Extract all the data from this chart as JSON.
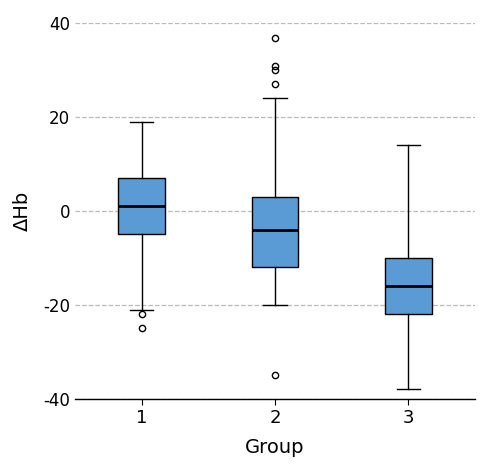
{
  "groups": [
    "1",
    "2",
    "3"
  ],
  "box_stats": [
    {
      "med": 1,
      "q1": -5,
      "q3": 7,
      "whislo": -21,
      "whishi": 19,
      "fliers": [
        -22,
        -25
      ]
    },
    {
      "med": -4,
      "q1": -12,
      "q3": 3,
      "whislo": -20,
      "whishi": 24,
      "fliers": [
        27,
        30,
        31,
        37,
        -35
      ]
    },
    {
      "med": -16,
      "q1": -22,
      "q3": -10,
      "whislo": -38,
      "whishi": 14,
      "fliers": []
    }
  ],
  "box_color": "#5B9BD5",
  "median_color": "#000000",
  "flier_color": "#000000",
  "xlabel": "Group",
  "ylabel": "ΔHb",
  "ylim": [
    -40,
    40
  ],
  "yticks": [
    -40,
    -20,
    0,
    20,
    40
  ],
  "grid_color": "#bbbbbb",
  "background_color": "#ffffff",
  "box_width": 0.35,
  "linewidth": 1.0,
  "figsize": [
    5.0,
    4.69
  ],
  "dpi": 100
}
